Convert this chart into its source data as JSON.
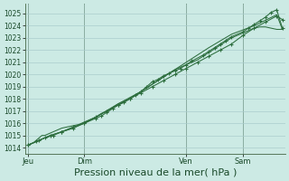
{
  "bg_color": "#cceae4",
  "grid_color": "#aacccc",
  "line_color": "#2d6e3e",
  "title": "Pression niveau de la mer( hPa )",
  "title_fontsize": 8.0,
  "ylim": [
    1013.5,
    1025.8
  ],
  "yticks": [
    1014,
    1015,
    1016,
    1017,
    1018,
    1019,
    1020,
    1021,
    1022,
    1023,
    1024,
    1025
  ],
  "xlim": [
    -1,
    91
  ],
  "day_positions": [
    0,
    20,
    56,
    76
  ],
  "day_labels": [
    "Jeu",
    "Dim",
    "Ven",
    "Sam"
  ],
  "line1_x": [
    0,
    1,
    2,
    3,
    4,
    5,
    6,
    7,
    8,
    9,
    10,
    11,
    12,
    14,
    16,
    18,
    20,
    22,
    24,
    26,
    28,
    30,
    32,
    34,
    36,
    38,
    40,
    42,
    44,
    46,
    48,
    50,
    52,
    54,
    56,
    58,
    60,
    62,
    64,
    66,
    68,
    70,
    72,
    74,
    76,
    78,
    80,
    82,
    84,
    86,
    88,
    90
  ],
  "line1_y": [
    1014.2,
    1014.3,
    1014.4,
    1014.6,
    1014.8,
    1015.0,
    1015.0,
    1015.1,
    1015.2,
    1015.3,
    1015.4,
    1015.5,
    1015.6,
    1015.7,
    1015.8,
    1015.9,
    1016.1,
    1016.3,
    1016.5,
    1016.8,
    1017.0,
    1017.3,
    1017.6,
    1017.8,
    1018.0,
    1018.3,
    1018.6,
    1018.9,
    1019.2,
    1019.5,
    1019.8,
    1020.1,
    1020.4,
    1020.6,
    1020.8,
    1021.0,
    1021.2,
    1021.5,
    1021.8,
    1022.1,
    1022.4,
    1022.7,
    1023.0,
    1023.2,
    1023.4,
    1023.6,
    1023.8,
    1023.9,
    1023.9,
    1023.8,
    1023.7,
    1023.7
  ],
  "line2_x": [
    0,
    3,
    6,
    9,
    12,
    16,
    20,
    24,
    26,
    28,
    30,
    32,
    34,
    36,
    38,
    40,
    42,
    44,
    46,
    48,
    50,
    52,
    54,
    56,
    58,
    62,
    64,
    66,
    68,
    70,
    72,
    76,
    78,
    80,
    82,
    84,
    86,
    88,
    90
  ],
  "line2_y": [
    1014.2,
    1014.5,
    1014.8,
    1015.0,
    1015.3,
    1015.7,
    1016.0,
    1016.4,
    1016.6,
    1016.9,
    1017.2,
    1017.5,
    1017.7,
    1018.0,
    1018.3,
    1018.6,
    1019.0,
    1019.4,
    1019.6,
    1019.9,
    1020.1,
    1020.3,
    1020.5,
    1020.8,
    1021.1,
    1021.6,
    1021.9,
    1022.2,
    1022.5,
    1022.8,
    1023.1,
    1023.5,
    1023.8,
    1024.1,
    1024.4,
    1024.7,
    1025.1,
    1025.3,
    1023.8
  ],
  "line3_x": [
    0,
    4,
    8,
    12,
    16,
    20,
    24,
    28,
    32,
    36,
    40,
    44,
    48,
    52,
    56,
    60,
    64,
    68,
    72,
    76,
    80,
    84,
    88,
    90
  ],
  "line3_y": [
    1014.2,
    1014.6,
    1015.0,
    1015.3,
    1015.6,
    1016.0,
    1016.5,
    1017.0,
    1017.5,
    1018.0,
    1018.5,
    1019.0,
    1019.5,
    1020.0,
    1020.5,
    1021.0,
    1021.5,
    1022.0,
    1022.5,
    1023.2,
    1023.8,
    1024.3,
    1024.8,
    1024.5
  ],
  "line4_x": [
    0,
    8,
    16,
    24,
    32,
    40,
    48,
    56,
    64,
    72,
    80,
    88,
    90
  ],
  "line4_y": [
    1014.2,
    1015.0,
    1015.6,
    1016.5,
    1017.6,
    1018.6,
    1019.8,
    1021.0,
    1022.2,
    1023.3,
    1024.0,
    1024.9,
    1023.7
  ],
  "markers2_x": [
    20,
    26,
    28,
    30,
    32,
    34,
    36,
    38,
    40,
    42,
    44,
    48,
    52,
    56,
    58,
    62,
    64,
    66,
    70,
    72,
    76,
    78,
    80,
    82,
    84,
    86,
    88,
    90
  ],
  "markers2_y": [
    1016.0,
    1016.6,
    1016.9,
    1017.2,
    1017.5,
    1017.7,
    1018.0,
    1018.3,
    1018.6,
    1019.0,
    1019.4,
    1019.9,
    1020.3,
    1020.8,
    1021.1,
    1021.6,
    1021.9,
    1022.2,
    1022.8,
    1023.1,
    1023.5,
    1023.8,
    1024.1,
    1024.4,
    1024.7,
    1025.1,
    1025.3,
    1023.8
  ],
  "markers3_x": [
    20,
    28,
    36,
    44,
    52,
    60,
    68,
    76,
    84,
    90
  ],
  "markers3_y": [
    1016.0,
    1017.0,
    1018.0,
    1019.0,
    1020.0,
    1021.0,
    1022.0,
    1023.2,
    1024.3,
    1024.5
  ]
}
